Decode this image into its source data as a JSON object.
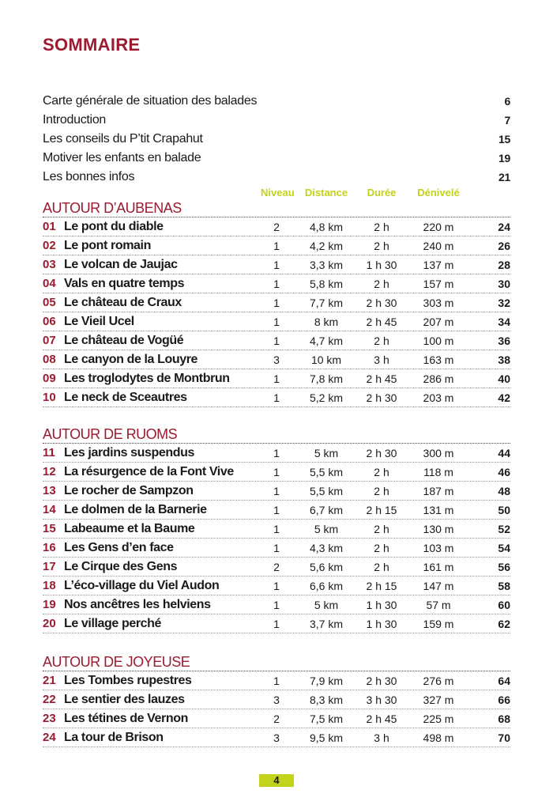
{
  "title": "SOMMAIRE",
  "intro": [
    {
      "label": "Carte générale de situation des balades",
      "page": "6"
    },
    {
      "label": "Introduction",
      "page": "7"
    },
    {
      "label": "Les conseils du P’tit Crapahut",
      "page": "15"
    },
    {
      "label": "Motiver les enfants en balade",
      "page": "19"
    },
    {
      "label": "Les bonnes infos",
      "page": "21"
    }
  ],
  "columns": {
    "level": "Niveau",
    "distance": "Distance",
    "duration": "Durée",
    "elevation": "Dénivelé"
  },
  "sections": [
    {
      "title": "AUTOUR D’AUBENAS",
      "rows": [
        [
          "01",
          "Le pont du diable",
          "2",
          "4,8 km",
          "2 h",
          "220 m",
          "24"
        ],
        [
          "02",
          "Le pont romain",
          "1",
          "4,2 km",
          "2 h",
          "240 m",
          "26"
        ],
        [
          "03",
          "Le volcan de Jaujac",
          "1",
          "3,3 km",
          "1 h 30",
          "137 m",
          "28"
        ],
        [
          "04",
          "Vals en quatre temps",
          "1",
          "5,8 km",
          "2 h",
          "157 m",
          "30"
        ],
        [
          "05",
          "Le château de Craux",
          "1",
          "7,7 km",
          "2 h 30",
          "303 m",
          "32"
        ],
        [
          "06",
          "Le Vieil Ucel",
          "1",
          "8 km",
          "2 h 45",
          "207 m",
          "34"
        ],
        [
          "07",
          "Le château de Vogüé",
          "1",
          "4,7 km",
          "2 h",
          "100 m",
          "36"
        ],
        [
          "08",
          "Le canyon de la Louyre",
          "3",
          "10 km",
          "3 h",
          "163 m",
          "38"
        ],
        [
          "09",
          "Les troglodytes de Montbrun",
          "1",
          "7,8 km",
          "2 h 45",
          "286 m",
          "40"
        ],
        [
          "10",
          "Le neck de Sceautres",
          "1",
          "5,2 km",
          "2 h 30",
          "203 m",
          "42"
        ]
      ]
    },
    {
      "title": "AUTOUR DE RUOMS",
      "rows": [
        [
          "11",
          "Les jardins suspendus",
          "1",
          "5 km",
          "2 h 30",
          "300 m",
          "44"
        ],
        [
          "12",
          "La résurgence de la Font Vive",
          "1",
          "5,5 km",
          "2 h",
          "118 m",
          "46"
        ],
        [
          "13",
          "Le rocher de Sampzon",
          "1",
          "5,5 km",
          "2 h",
          "187 m",
          "48"
        ],
        [
          "14",
          "Le dolmen de la Barnerie",
          "1",
          "6,7 km",
          "2 h 15",
          "131 m",
          "50"
        ],
        [
          "15",
          "Labeaume et la Baume",
          "1",
          "5 km",
          "2 h",
          "130 m",
          "52"
        ],
        [
          "16",
          "Les Gens d’en face",
          "1",
          "4,3 km",
          "2 h",
          "103 m",
          "54"
        ],
        [
          "17",
          "Le Cirque des Gens",
          "2",
          "5,6 km",
          "2 h",
          "161 m",
          "56"
        ],
        [
          "18",
          "L’éco-village du Viel Audon",
          "1",
          "6,6 km",
          "2 h 15",
          "147 m",
          "58"
        ],
        [
          "19",
          "Nos ancêtres les helviens",
          "1",
          "5 km",
          "1 h 30",
          "57 m",
          "60"
        ],
        [
          "20",
          "Le village perché",
          "1",
          "3,7 km",
          "1 h 30",
          "159 m",
          "62"
        ]
      ]
    },
    {
      "title": "AUTOUR DE JOYEUSE",
      "rows": [
        [
          "21",
          "Les Tombes rupestres",
          "1",
          "7,9 km",
          "2 h 30",
          "276 m",
          "64"
        ],
        [
          "22",
          "Le sentier des lauzes",
          "3",
          "8,3 km",
          "3 h 30",
          "327 m",
          "66"
        ],
        [
          "23",
          "Les tétines de Vernon",
          "2",
          "7,5 km",
          "2 h 45",
          "225 m",
          "68"
        ],
        [
          "24",
          "La tour de Brison",
          "3",
          "9,5 km",
          "3 h",
          "498 m",
          "70"
        ]
      ]
    }
  ],
  "folio": "4",
  "colors": {
    "accent_red": "#9b1b30",
    "accent_green": "#c3d21a"
  }
}
